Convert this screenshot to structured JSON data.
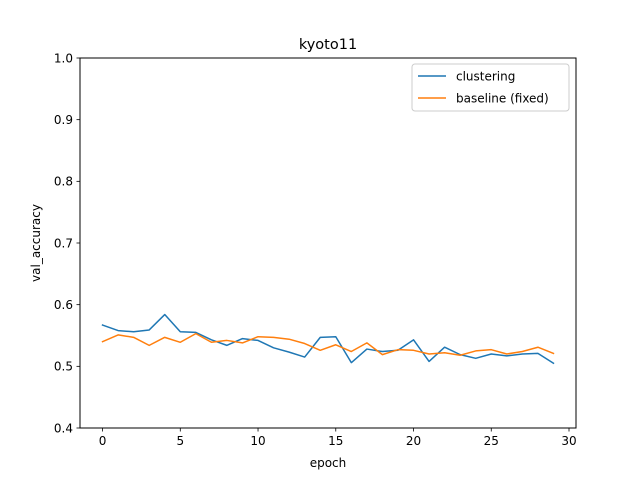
{
  "chart_data": {
    "type": "line",
    "title": "kyoto11",
    "xlabel": "epoch",
    "ylabel": "val_accuracy",
    "xlim": [
      -1.45,
      30.45
    ],
    "ylim": [
      0.4,
      1.0
    ],
    "xticks": [
      0,
      5,
      10,
      15,
      20,
      25,
      30
    ],
    "yticks": [
      0.4,
      0.5,
      0.6,
      0.7,
      0.8,
      0.9,
      1.0
    ],
    "xtick_labels": [
      "0",
      "5",
      "10",
      "15",
      "20",
      "25",
      "30"
    ],
    "ytick_labels": [
      "0.4",
      "0.5",
      "0.6",
      "0.7",
      "0.8",
      "0.9",
      "1.0"
    ],
    "grid": false,
    "legend_position": "top-right",
    "x": [
      0,
      1,
      2,
      3,
      4,
      5,
      6,
      7,
      8,
      9,
      10,
      11,
      12,
      13,
      14,
      15,
      16,
      17,
      18,
      19,
      20,
      21,
      22,
      23,
      24,
      25,
      26,
      27,
      28,
      29
    ],
    "series": [
      {
        "name": "clustering",
        "color": "#1f77b4",
        "values": [
          0.567,
          0.558,
          0.556,
          0.559,
          0.584,
          0.556,
          0.555,
          0.543,
          0.534,
          0.545,
          0.542,
          0.53,
          0.523,
          0.515,
          0.547,
          0.548,
          0.506,
          0.528,
          0.524,
          0.526,
          0.543,
          0.508,
          0.531,
          0.519,
          0.513,
          0.52,
          0.517,
          0.52,
          0.521,
          0.505
        ]
      },
      {
        "name": "baseline (fixed)",
        "color": "#ff7f0e",
        "values": [
          0.54,
          0.551,
          0.547,
          0.534,
          0.547,
          0.539,
          0.553,
          0.539,
          0.542,
          0.538,
          0.548,
          0.547,
          0.544,
          0.537,
          0.526,
          0.535,
          0.524,
          0.538,
          0.519,
          0.527,
          0.526,
          0.52,
          0.522,
          0.518,
          0.525,
          0.527,
          0.52,
          0.524,
          0.531,
          0.521
        ]
      }
    ]
  }
}
